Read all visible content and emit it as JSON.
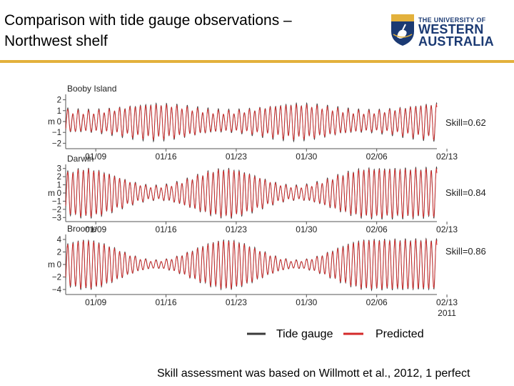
{
  "header": {
    "title": "Comparison with tide gauge observations –\nNorthwest shelf",
    "logo": {
      "line1": "THE UNIVERSITY OF",
      "line2": "WESTERN",
      "line3": "AUSTRALIA",
      "icon": "crest-icon",
      "brand_color": "#1b3a73",
      "accent_color": "#e3b13c"
    }
  },
  "chart_data": {
    "type": "line",
    "x_tick_labels": [
      "01/09",
      "01/16",
      "01/23",
      "01/30",
      "02/06",
      "02/13"
    ],
    "year_label": "2011",
    "ylabel": "m",
    "legend": [
      {
        "name": "Tide gauge",
        "color": "#3a3a3a"
      },
      {
        "name": "Predicted",
        "color": "#d42a2a"
      }
    ],
    "panels": [
      {
        "title": "Booby Island",
        "skill_label": "Skill=0.62",
        "ylim": [
          -2.5,
          2.5
        ],
        "yticks": [
          -2,
          -1,
          0,
          1,
          2
        ],
        "ytick_labels": [
          "−2",
          "−1",
          "0",
          "1",
          "2"
        ],
        "amp_min": 0.9,
        "amp_max": 1.6,
        "neap_days": [
          8,
          22,
          36
        ]
      },
      {
        "title": "Darwin",
        "skill_label": "Skill=0.84",
        "ylim": [
          -3.5,
          3.5
        ],
        "yticks": [
          -3,
          -2,
          -1,
          0,
          1,
          2,
          3
        ],
        "ytick_labels": [
          "−3",
          "−2",
          "−1",
          "0",
          "1",
          "2",
          "3"
        ],
        "amp_min": 0.8,
        "amp_max": 3.0,
        "neap_days": [
          1,
          15,
          29
        ]
      },
      {
        "title": "Broome",
        "skill_label": "Skill=0.86",
        "ylim": [
          -4.8,
          4.8
        ],
        "yticks": [
          -4,
          -2,
          0,
          2,
          4
        ],
        "ytick_labels": [
          "−4",
          "−2",
          "0",
          "2",
          "4"
        ],
        "amp_min": 0.6,
        "amp_max": 4.0,
        "neap_days": [
          1,
          15,
          29
        ]
      }
    ]
  },
  "caption": "Skill assessment was based on Willmott et al., 2012, 1 perfect"
}
